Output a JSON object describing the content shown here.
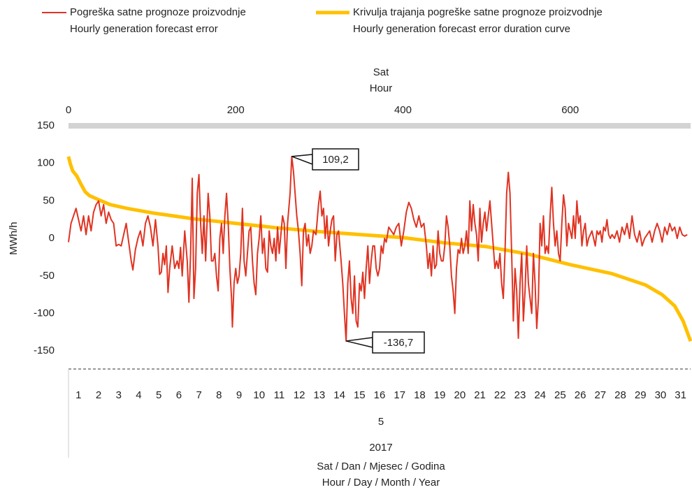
{
  "chart_data": {
    "type": "line",
    "legend_lines": [
      [
        "Pogreška satne prognoze proizvodnje",
        "Hourly generation forecast error"
      ],
      [
        "Krivulja trajanja pogreške satne prognoze proizvodnje",
        "Hourly generation forecast error duration curve"
      ]
    ],
    "top_axis_title": [
      "Sat",
      "Hour"
    ],
    "y_axis_title": "MWh/h",
    "x_axis_title": [
      "Sat / Dan / Mjesec / Godina",
      "Hour / Day / Month / Year"
    ],
    "xlim": [
      0,
      744
    ],
    "xticks": [
      0,
      200,
      400,
      600
    ],
    "ylim": [
      -174,
      150
    ],
    "yticks": [
      -150,
      -100,
      -50,
      0,
      50,
      100,
      150
    ],
    "days": [
      1,
      2,
      3,
      4,
      5,
      6,
      7,
      8,
      9,
      10,
      11,
      12,
      13,
      14,
      15,
      16,
      17,
      18,
      19,
      20,
      21,
      22,
      23,
      24,
      25,
      26,
      27,
      28,
      29,
      30,
      31
    ],
    "month": "5",
    "year": "2017",
    "series": [
      {
        "name": "Pogreška satne prognoze proizvodnje",
        "color": "#e03322",
        "x": [
          0,
          3,
          6,
          9,
          12,
          15,
          18,
          21,
          24,
          27,
          30,
          33,
          36,
          39,
          42,
          45,
          48,
          51,
          54,
          57,
          60,
          63,
          66,
          69,
          72,
          75,
          77,
          80,
          83,
          86,
          89,
          92,
          95,
          98,
          101,
          104,
          107,
          109,
          111,
          113,
          115,
          117,
          119,
          121,
          124,
          127,
          130,
          132,
          134,
          136,
          139,
          142,
          144,
          146,
          148,
          150,
          152,
          154,
          156,
          158,
          160,
          162,
          164,
          167,
          169,
          171,
          173,
          175,
          177,
          179,
          181,
          183,
          185,
          187,
          189,
          191,
          193,
          195,
          196,
          198,
          200,
          202,
          204,
          206,
          208,
          210,
          212,
          214,
          216,
          218,
          220,
          222,
          224,
          226,
          228,
          230,
          232,
          234,
          236,
          238,
          240,
          242,
          244,
          246,
          248,
          250,
          252,
          254,
          256,
          258,
          260,
          262,
          265,
          267,
          269,
          271,
          273,
          275,
          277,
          279,
          281,
          283,
          285,
          287,
          289,
          291,
          293,
          296,
          299,
          301,
          303,
          305,
          307,
          309,
          311,
          313,
          315,
          317,
          319,
          321,
          323,
          326,
          328,
          330,
          332,
          334,
          336,
          338,
          340,
          342,
          344,
          346,
          348,
          350,
          352,
          354,
          356,
          358,
          360,
          362,
          364,
          366,
          368,
          370,
          372,
          374,
          376,
          378,
          380,
          383,
          386,
          389,
          392,
          395,
          398,
          401,
          404,
          407,
          410,
          413,
          416,
          419,
          422,
          425,
          428,
          430,
          432,
          434,
          436,
          438,
          440,
          442,
          444,
          446,
          448,
          450,
          452,
          454,
          456,
          458,
          460,
          462,
          464,
          466,
          468,
          470,
          472,
          474,
          476,
          478,
          480,
          482,
          484,
          486,
          488,
          490,
          492,
          494,
          496,
          498,
          500,
          502,
          504,
          506,
          508,
          510,
          512,
          514,
          516,
          518,
          520,
          522,
          524,
          526,
          528,
          530,
          532,
          534,
          536,
          538,
          540,
          542,
          544,
          546,
          548,
          550,
          552,
          554,
          556,
          558,
          560,
          562,
          564,
          566,
          568,
          570,
          572,
          574,
          576,
          578,
          580,
          582,
          584,
          586,
          588,
          590,
          592,
          594,
          596,
          598,
          600,
          602,
          604,
          606,
          608,
          610,
          612,
          614,
          616,
          618,
          620,
          622,
          624,
          626,
          628,
          630,
          632,
          634,
          636,
          638,
          640,
          642,
          644,
          646,
          648,
          650,
          653,
          656,
          659,
          662,
          665,
          668,
          671,
          674,
          677,
          680,
          683,
          686,
          689,
          692,
          695,
          698,
          701,
          704,
          707,
          710,
          713,
          716,
          719,
          722,
          725,
          728,
          731,
          734,
          737,
          740
        ],
        "values": [
          -5,
          20,
          30,
          40,
          25,
          10,
          30,
          5,
          30,
          10,
          35,
          45,
          50,
          30,
          45,
          20,
          35,
          25,
          20,
          -10,
          -8,
          -10,
          5,
          20,
          -5,
          -30,
          -42,
          -15,
          0,
          10,
          -10,
          20,
          30,
          15,
          -10,
          25,
          -10,
          -48,
          -45,
          -20,
          -35,
          -10,
          -72,
          -40,
          -10,
          -40,
          -30,
          -40,
          -12,
          -50,
          10,
          -30,
          -85,
          -20,
          80,
          -80,
          -40,
          60,
          85,
          20,
          -20,
          30,
          -30,
          60,
          30,
          -30,
          -30,
          -20,
          -50,
          -70,
          0,
          20,
          -20,
          30,
          60,
          20,
          -40,
          -80,
          -118,
          -60,
          -40,
          -60,
          -50,
          -20,
          40,
          -30,
          -50,
          -20,
          10,
          15,
          -30,
          -60,
          -75,
          -20,
          0,
          30,
          -20,
          0,
          -40,
          -45,
          10,
          -10,
          -20,
          0,
          -30,
          15,
          -20,
          5,
          30,
          20,
          -40,
          20,
          60,
          109.2,
          90,
          60,
          30,
          10,
          -20,
          -63,
          10,
          20,
          -10,
          5,
          -20,
          -10,
          10,
          5,
          45,
          63,
          30,
          40,
          0,
          30,
          -10,
          10,
          25,
          30,
          -30,
          5,
          10,
          -30,
          -60,
          -100,
          -136.7,
          -60,
          -30,
          -80,
          -100,
          -50,
          -110,
          -118,
          -60,
          -70,
          -45,
          -80,
          -40,
          -10,
          -60,
          -30,
          -10,
          -10,
          -40,
          -50,
          -40,
          -10,
          -20,
          0,
          -5,
          15,
          10,
          5,
          15,
          20,
          -10,
          10,
          35,
          48,
          40,
          25,
          15,
          30,
          15,
          20,
          -10,
          -40,
          -20,
          -50,
          -10,
          -40,
          -35,
          10,
          -20,
          -30,
          -30,
          -10,
          30,
          15,
          -10,
          -50,
          -70,
          -100,
          -40,
          -15,
          -20,
          0,
          -20,
          -10,
          10,
          -20,
          50,
          10,
          45,
          20,
          5,
          -30,
          40,
          -5,
          20,
          35,
          10,
          30,
          50,
          20,
          -10,
          -40,
          -30,
          -40,
          -20,
          -60,
          -80,
          -20,
          60,
          88,
          60,
          -20,
          -110,
          -40,
          -70,
          -133,
          -60,
          -20,
          -110,
          -70,
          -10,
          -60,
          -80,
          -100,
          -20,
          -60,
          -120,
          -80,
          20,
          -10,
          30,
          -20,
          -10,
          -20,
          30,
          68,
          20,
          -10,
          10,
          -20,
          -30,
          20,
          58,
          40,
          -10,
          20,
          10,
          0,
          30,
          0,
          50,
          20,
          30,
          -10,
          10,
          20,
          -10,
          0,
          5,
          10,
          0,
          -10,
          10,
          5,
          10,
          -5,
          15,
          10,
          25,
          5,
          0,
          5,
          0,
          10,
          -5,
          15,
          5,
          20,
          0,
          30,
          5,
          -5,
          10,
          -10,
          0,
          5,
          10,
          -5,
          10,
          20,
          10,
          -5,
          15,
          5,
          20,
          10,
          15,
          0,
          15,
          5,
          3,
          5
        ]
      },
      {
        "name": "Krivulja trajanja pogreške satne prognoze proizvodnje",
        "color": "#ffc000",
        "x": [
          0,
          2,
          5,
          10,
          15,
          20,
          25,
          35,
          50,
          70,
          100,
          150,
          200,
          250,
          300,
          350,
          400,
          450,
          500,
          550,
          600,
          650,
          690,
          710,
          725,
          735,
          740,
          744
        ],
        "values": [
          109,
          100,
          90,
          83,
          72,
          62,
          57,
          52,
          45,
          40,
          34,
          26,
          20,
          14,
          9,
          5,
          1,
          -6,
          -11,
          -21,
          -35,
          -47,
          -62,
          -75,
          -90,
          -110,
          -125,
          -137
        ]
      }
    ],
    "annotations": [
      {
        "x": 267,
        "y": 109.2,
        "label": "109,2"
      },
      {
        "x": 332,
        "y": -136.7,
        "label": "-136,7"
      }
    ]
  }
}
